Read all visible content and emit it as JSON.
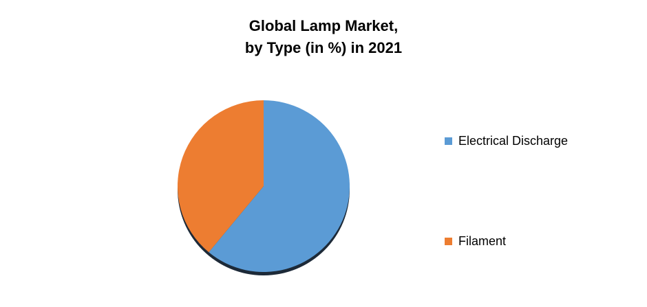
{
  "title": {
    "line1": "Global Lamp Market,",
    "line2": "by Type (in %) in 2021"
  },
  "chart_data": {
    "type": "pie",
    "title": "Global Lamp Market, by Type (in %) in 2021",
    "slices": [
      {
        "label": "Electrical Discharge",
        "value": 61,
        "color": "#5B9BD5"
      },
      {
        "label": "Filament",
        "value": 39,
        "color": "#ED7D31"
      }
    ],
    "start_angle_deg": 0,
    "direction": "clockwise",
    "legend_position": "right",
    "shadow_color": "#1d2a38",
    "background_color": "#ffffff"
  }
}
